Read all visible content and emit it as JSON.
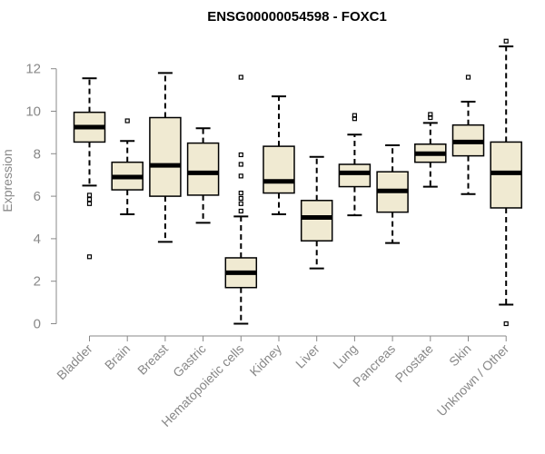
{
  "chart_data": {
    "type": "box",
    "title": "ENSG00000054598 - FOXC1",
    "xlabel": "",
    "ylabel": "Expression",
    "ylim": [
      -0.3,
      13.4
    ],
    "yticks": [
      0,
      2,
      4,
      6,
      8,
      10,
      12
    ],
    "grid": false,
    "colors": {
      "box_fill": "#f0ead2",
      "box_stroke": "#000000",
      "axis": "#888888"
    },
    "categories": [
      "Bladder",
      "Brain",
      "Breast",
      "Gastric",
      "Hematopoietic cells",
      "Kidney",
      "Liver",
      "Lung",
      "Pancreas",
      "Prostate",
      "Skin",
      "Unknown / Other"
    ],
    "boxes": [
      {
        "category": "Bladder",
        "whisker_low": 6.5,
        "q1": 8.55,
        "median": 9.25,
        "q3": 9.95,
        "whisker_high": 11.55,
        "outliers": [
          6.05,
          5.85,
          5.65,
          3.15
        ]
      },
      {
        "category": "Brain",
        "whisker_low": 5.15,
        "q1": 6.3,
        "median": 6.9,
        "q3": 7.6,
        "whisker_high": 8.6,
        "outliers": [
          9.55
        ]
      },
      {
        "category": "Breast",
        "whisker_low": 3.85,
        "q1": 6.0,
        "median": 7.45,
        "q3": 9.7,
        "whisker_high": 11.8,
        "outliers": []
      },
      {
        "category": "Gastric",
        "whisker_low": 4.75,
        "q1": 6.05,
        "median": 7.1,
        "q3": 8.5,
        "whisker_high": 9.2,
        "outliers": []
      },
      {
        "category": "Hematopoietic cells",
        "whisker_low": 0.0,
        "q1": 1.7,
        "median": 2.4,
        "q3": 3.1,
        "whisker_high": 5.05,
        "outliers": [
          11.6,
          7.95,
          7.5,
          6.95,
          6.15,
          5.9,
          5.65,
          5.3
        ]
      },
      {
        "category": "Kidney",
        "whisker_low": 5.15,
        "q1": 6.15,
        "median": 6.7,
        "q3": 8.35,
        "whisker_high": 10.7,
        "outliers": []
      },
      {
        "category": "Liver",
        "whisker_low": 2.6,
        "q1": 3.9,
        "median": 5.0,
        "q3": 5.8,
        "whisker_high": 7.85,
        "outliers": []
      },
      {
        "category": "Lung",
        "whisker_low": 5.1,
        "q1": 6.45,
        "median": 7.1,
        "q3": 7.5,
        "whisker_high": 8.9,
        "outliers": [
          9.8,
          9.65
        ]
      },
      {
        "category": "Pancreas",
        "whisker_low": 3.8,
        "q1": 5.25,
        "median": 6.25,
        "q3": 7.15,
        "whisker_high": 8.4,
        "outliers": []
      },
      {
        "category": "Prostate",
        "whisker_low": 6.45,
        "q1": 7.6,
        "median": 8.0,
        "q3": 8.45,
        "whisker_high": 9.45,
        "outliers": [
          9.85,
          9.7
        ]
      },
      {
        "category": "Skin",
        "whisker_low": 6.1,
        "q1": 7.9,
        "median": 8.55,
        "q3": 9.35,
        "whisker_high": 10.45,
        "outliers": [
          11.6
        ]
      },
      {
        "category": "Unknown / Other",
        "whisker_low": 0.9,
        "q1": 5.45,
        "median": 7.1,
        "q3": 8.55,
        "whisker_high": 13.05,
        "outliers": [
          13.3,
          0.0
        ]
      }
    ]
  }
}
